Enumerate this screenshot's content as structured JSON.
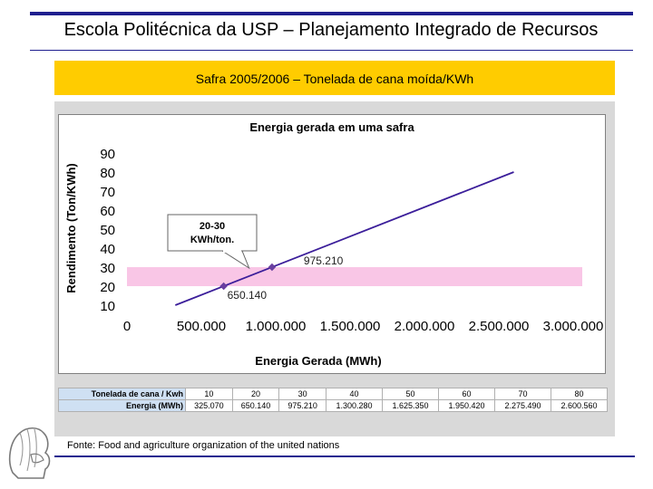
{
  "slide": {
    "title": "Escola Politécnica da USP – Planejamento Integrado de Recursos",
    "banner": "Safra 2005/2006 – Tonelada de cana moída/KWh",
    "source": "Fonte: Food and agriculture organization of the united nations"
  },
  "colors": {
    "accent": "#1f1f8f",
    "banner": "#ffcc00",
    "band": "#f9c6e6",
    "line": "#3b1e9a",
    "point": "#6a3fa0"
  },
  "chart_data": {
    "type": "line",
    "title": "Energia gerada em uma safra",
    "xlabel": "Energia Gerada (MWh)",
    "ylabel": "Rendimento (Ton/KWh)",
    "xlim": [
      0,
      3000000
    ],
    "ylim": [
      10,
      90
    ],
    "x_ticks": [
      "0",
      "500.000",
      "1.000.000",
      "1.500.000",
      "2.000.000",
      "2.500.000",
      "3.000.000"
    ],
    "y_ticks": [
      "10",
      "20",
      "30",
      "40",
      "50",
      "60",
      "70",
      "80",
      "90"
    ],
    "series": [
      {
        "x": [
          325070,
          2600560
        ],
        "y": [
          10,
          80
        ]
      }
    ],
    "highlight_band": {
      "y_from": 20,
      "y_to": 30
    },
    "points": [
      {
        "x": 650140,
        "y": 20,
        "label": "650.140"
      },
      {
        "x": 975210,
        "y": 30,
        "label": "975.210"
      }
    ],
    "callout": {
      "line1": "20-30",
      "line2": "KWh/ton."
    },
    "grid": false,
    "legend": "none"
  },
  "table": {
    "row1_header": "Tonelada de cana / Kwh",
    "row2_header": "Energia (MWh)",
    "row1": [
      "10",
      "20",
      "30",
      "40",
      "50",
      "60",
      "70",
      "80"
    ],
    "row2": [
      "325.070",
      "650.140",
      "975.210",
      "1.300.280",
      "1.625.350",
      "1.950.420",
      "2.275.490",
      "2.600.560"
    ]
  }
}
